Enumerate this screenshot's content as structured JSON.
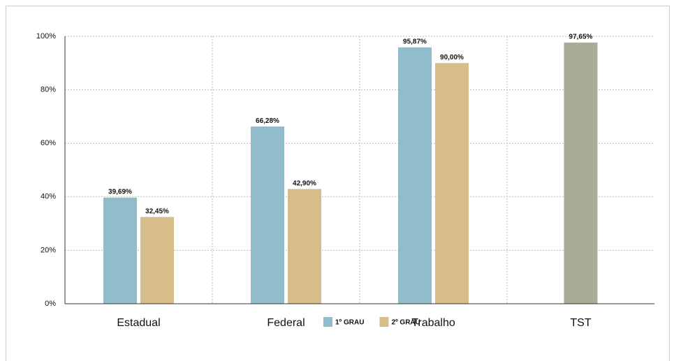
{
  "chart_data": {
    "type": "bar",
    "categories": [
      "Estadual",
      "Federal",
      "Trabalho",
      "TST"
    ],
    "series": [
      {
        "name": "1º GRAU",
        "color": "#93bccb",
        "colors": [
          "#93bccb",
          "#93bccb",
          "#93bccb",
          "#a8ad96"
        ],
        "values": [
          39.69,
          66.28,
          95.87,
          97.65
        ],
        "value_labels": [
          "39,69%",
          "66,28%",
          "95,87%",
          "97,65%"
        ]
      },
      {
        "name": "2º GRAU",
        "color": "#d6bd8a",
        "values": [
          32.45,
          42.9,
          90.0,
          null
        ],
        "value_labels": [
          "32,45%",
          "42,90%",
          "90,00%",
          null
        ]
      }
    ],
    "ylim": [
      0,
      100
    ],
    "yticks": [
      {
        "value": 0,
        "label": "0%"
      },
      {
        "value": 20,
        "label": "20%"
      },
      {
        "value": 40,
        "label": "40%"
      },
      {
        "value": 60,
        "label": "60%"
      },
      {
        "value": 80,
        "label": "80%"
      },
      {
        "value": 100,
        "label": "100%"
      }
    ],
    "grid": true,
    "legend": "bottom"
  }
}
